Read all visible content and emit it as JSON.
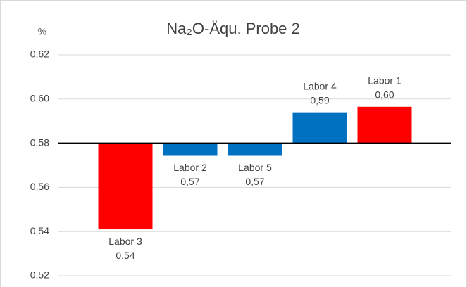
{
  "chart_data": {
    "type": "bar",
    "title": "Na₂O-Äqu. Probe 2",
    "y_label": "%",
    "categories": [
      "Labor 3",
      "Labor 2",
      "Labor 5",
      "Labor 4",
      "Labor 1"
    ],
    "values": [
      0.541,
      0.5743,
      0.5743,
      0.594,
      0.5965
    ],
    "value_labels": [
      "0,54",
      "0,57",
      "0,57",
      "0,59",
      "0,60"
    ],
    "colors": [
      "#ff0000",
      "#0070c0",
      "#0070c0",
      "#0070c0",
      "#ff0000"
    ],
    "baseline": 0.58,
    "ylim": [
      0.52,
      0.62
    ],
    "yticks": [
      {
        "value": 0.52,
        "label": "0,52"
      },
      {
        "value": 0.54,
        "label": "0,54"
      },
      {
        "value": 0.56,
        "label": "0,56"
      },
      {
        "value": 0.58,
        "label": "0,58"
      },
      {
        "value": 0.6,
        "label": "0,60"
      },
      {
        "value": 0.62,
        "label": "0,62"
      }
    ],
    "grid": true
  }
}
